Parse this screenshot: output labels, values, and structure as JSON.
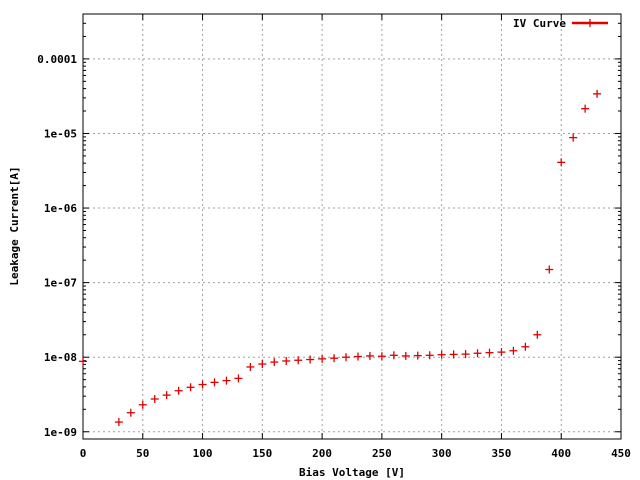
{
  "chart_data": {
    "type": "scatter",
    "title": "",
    "xlabel": "Bias Voltage [V]",
    "ylabel": "Leakage Current[A]",
    "xlim": [
      0,
      450
    ],
    "ylim": [
      8e-10,
      0.0004
    ],
    "yscale": "log",
    "grid": true,
    "legend_position": "top-right",
    "x_ticks": [
      {
        "value": 0,
        "label": "0"
      },
      {
        "value": 50,
        "label": "50"
      },
      {
        "value": 100,
        "label": "100"
      },
      {
        "value": 150,
        "label": "150"
      },
      {
        "value": 200,
        "label": "200"
      },
      {
        "value": 250,
        "label": "250"
      },
      {
        "value": 300,
        "label": "300"
      },
      {
        "value": 350,
        "label": "350"
      },
      {
        "value": 400,
        "label": "400"
      },
      {
        "value": 450,
        "label": "450"
      }
    ],
    "y_ticks": [
      {
        "value": 1e-09,
        "label": "1e-09"
      },
      {
        "value": 1e-08,
        "label": "1e-08"
      },
      {
        "value": 1e-07,
        "label": "1e-07"
      },
      {
        "value": 1e-06,
        "label": "1e-06"
      },
      {
        "value": 1e-05,
        "label": "1e-05"
      },
      {
        "value": 0.0001,
        "label": "0.0001"
      }
    ],
    "series": [
      {
        "name": "IV Curve",
        "color": "#e00000",
        "marker": "plus",
        "x": [
          0,
          30,
          40,
          50,
          60,
          70,
          80,
          90,
          100,
          110,
          120,
          130,
          140,
          150,
          160,
          170,
          180,
          190,
          200,
          210,
          220,
          230,
          240,
          250,
          260,
          270,
          280,
          290,
          300,
          310,
          320,
          330,
          340,
          350,
          360,
          370,
          380,
          390,
          400,
          410,
          420,
          430
        ],
        "y": [
          8.8e-09,
          1.35e-09,
          1.8e-09,
          2.3e-09,
          2.75e-09,
          3.1e-09,
          3.55e-09,
          3.95e-09,
          4.3e-09,
          4.6e-09,
          4.85e-09,
          5.2e-09,
          7.4e-09,
          8.1e-09,
          8.6e-09,
          8.9e-09,
          9.1e-09,
          9.3e-09,
          9.5e-09,
          9.7e-09,
          1e-08,
          1.02e-08,
          1.04e-08,
          1.03e-08,
          1.06e-08,
          1.04e-08,
          1.05e-08,
          1.06e-08,
          1.08e-08,
          1.09e-08,
          1.1e-08,
          1.13e-08,
          1.15e-08,
          1.17e-08,
          1.22e-08,
          1.38e-08,
          2e-08,
          1.5e-07,
          4.1e-06,
          8.8e-06,
          2.15e-05,
          3.4e-05
        ]
      }
    ]
  }
}
